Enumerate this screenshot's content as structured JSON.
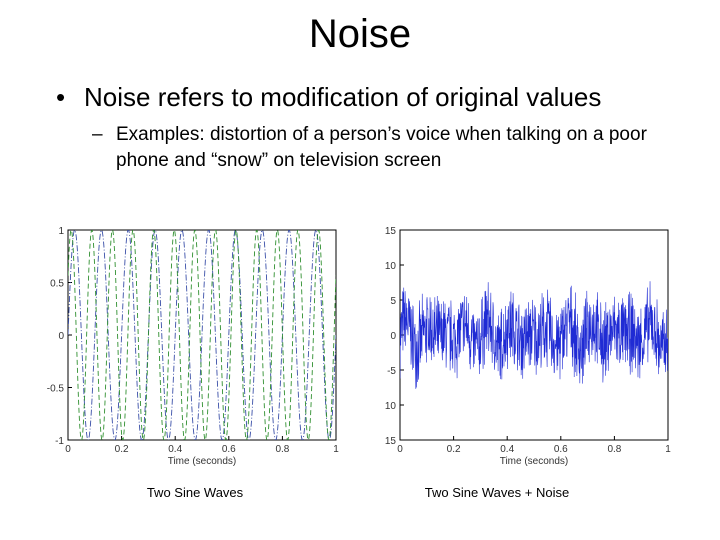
{
  "slide": {
    "title": "Noise",
    "bullet": "Noise refers to modification of original values",
    "sub_bullet": "Examples: distortion of a person’s voice when talking on a poor phone and “snow” on television screen"
  },
  "chart_data": [
    {
      "type": "line",
      "xlabel": "Time (seconds)",
      "ylabel": "",
      "xlim": [
        0,
        1
      ],
      "ylim": [
        -1,
        1
      ],
      "x_ticks": [
        "0",
        "0.2",
        "0.4",
        "0.6",
        "0.8",
        "1"
      ],
      "y_ticks": [
        "1",
        "0.5",
        "0",
        "-0.5",
        "-1"
      ],
      "series": [
        {
          "frequency_hz": 10,
          "amplitude": 1,
          "color": "#3a4fa8",
          "dash": "dash-dot"
        },
        {
          "frequency_hz": 13,
          "amplitude": 1,
          "color": "#2f8f2f",
          "dash": "dashed"
        }
      ],
      "caption": "Two Sine Waves"
    },
    {
      "type": "line",
      "xlabel": "Time (seconds)",
      "ylabel": "",
      "xlim": [
        0,
        1
      ],
      "ylim": [
        -15,
        15
      ],
      "x_ticks": [
        "0",
        "0.2",
        "0.4",
        "0.6",
        "0.8",
        "1"
      ],
      "y_ticks": [
        "15",
        "10",
        "5",
        "0",
        "-5",
        "10",
        "15"
      ],
      "series": [
        {
          "frequency_hz": [
            10,
            13
          ],
          "noise_amplitude": 5,
          "color": "#1f2bd4"
        }
      ],
      "caption": "Two Sine Waves + Noise"
    }
  ]
}
